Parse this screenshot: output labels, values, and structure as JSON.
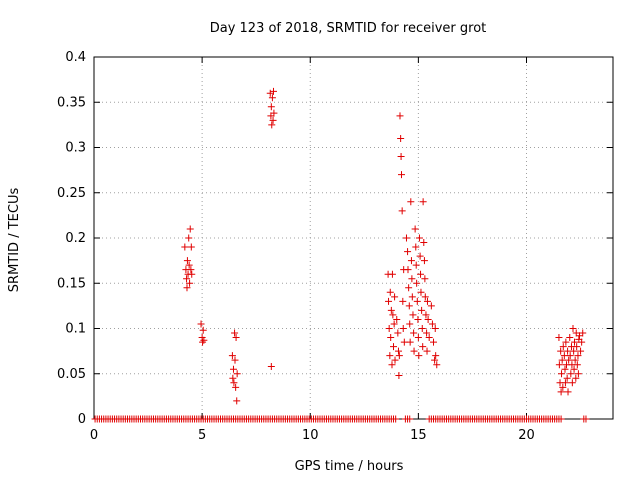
{
  "chart_data": {
    "type": "scatter",
    "title": "Day 123 of 2018, SRMTID for receiver grot",
    "xlabel": "GPS time / hours",
    "ylabel": "SRMTID / TECUs",
    "xlim": [
      0,
      24
    ],
    "ylim": [
      0,
      0.4
    ],
    "xticks": [
      0,
      5,
      10,
      15,
      20
    ],
    "xtick_labels": [
      "0",
      "5",
      "10",
      "15",
      "20"
    ],
    "yticks": [
      0,
      0.05,
      0.1,
      0.15,
      0.2,
      0.25,
      0.3,
      0.35,
      0.4
    ],
    "ytick_labels": [
      "0",
      "0.05",
      "0.1",
      "0.15",
      "0.2",
      "0.25",
      "0.3",
      "0.35",
      "0.4"
    ],
    "grid": true,
    "marker": "plus",
    "color": "#e00000",
    "series": [
      {
        "points": [
          [
            4.2,
            0.19
          ],
          [
            4.25,
            0.165
          ],
          [
            4.28,
            0.155
          ],
          [
            4.3,
            0.145
          ],
          [
            4.32,
            0.175
          ],
          [
            4.35,
            0.16
          ],
          [
            4.38,
            0.2
          ],
          [
            4.4,
            0.17
          ],
          [
            4.42,
            0.15
          ],
          [
            4.45,
            0.21
          ],
          [
            4.48,
            0.165
          ],
          [
            4.5,
            0.19
          ],
          [
            4.52,
            0.16
          ],
          [
            4.95,
            0.105
          ],
          [
            5.0,
            0.09
          ],
          [
            5.02,
            0.085
          ],
          [
            5.05,
            0.098
          ],
          [
            5.08,
            0.087
          ],
          [
            6.4,
            0.07
          ],
          [
            6.42,
            0.045
          ],
          [
            6.45,
            0.055
          ],
          [
            6.47,
            0.04
          ],
          [
            6.5,
            0.095
          ],
          [
            6.52,
            0.065
          ],
          [
            6.55,
            0.035
          ],
          [
            6.57,
            0.09
          ],
          [
            6.6,
            0.02
          ],
          [
            6.62,
            0.05
          ],
          [
            8.15,
            0.36
          ],
          [
            8.18,
            0.335
          ],
          [
            8.2,
            0.345
          ],
          [
            8.22,
            0.325
          ],
          [
            8.25,
            0.355
          ],
          [
            8.28,
            0.33
          ],
          [
            8.3,
            0.362
          ],
          [
            8.32,
            0.338
          ],
          [
            8.2,
            0.058
          ],
          [
            13.6,
            0.16
          ],
          [
            13.62,
            0.13
          ],
          [
            13.65,
            0.1
          ],
          [
            13.68,
            0.07
          ],
          [
            13.7,
            0.14
          ],
          [
            13.72,
            0.09
          ],
          [
            13.75,
            0.12
          ],
          [
            13.78,
            0.06
          ],
          [
            13.8,
            0.16
          ],
          [
            13.82,
            0.115
          ],
          [
            13.85,
            0.08
          ],
          [
            13.88,
            0.105
          ],
          [
            13.9,
            0.135
          ],
          [
            13.92,
            0.065
          ],
          [
            14.0,
            0.11
          ],
          [
            14.05,
            0.095
          ],
          [
            14.08,
            0.075
          ],
          [
            14.1,
            0.048
          ],
          [
            14.12,
            0.07
          ],
          [
            14.15,
            0.335
          ],
          [
            14.18,
            0.31
          ],
          [
            14.2,
            0.29
          ],
          [
            14.22,
            0.27
          ],
          [
            14.25,
            0.23
          ],
          [
            14.28,
            0.13
          ],
          [
            14.3,
            0.1
          ],
          [
            14.32,
            0.165
          ],
          [
            14.35,
            0.085
          ],
          [
            14.45,
            0.2
          ],
          [
            14.5,
            0.185
          ],
          [
            14.52,
            0.165
          ],
          [
            14.55,
            0.145
          ],
          [
            14.58,
            0.125
          ],
          [
            14.6,
            0.105
          ],
          [
            14.62,
            0.085
          ],
          [
            14.65,
            0.24
          ],
          [
            14.68,
            0.175
          ],
          [
            14.7,
            0.155
          ],
          [
            14.72,
            0.135
          ],
          [
            14.75,
            0.115
          ],
          [
            14.78,
            0.095
          ],
          [
            14.8,
            0.075
          ],
          [
            14.85,
            0.21
          ],
          [
            14.88,
            0.19
          ],
          [
            14.9,
            0.17
          ],
          [
            14.92,
            0.15
          ],
          [
            14.95,
            0.13
          ],
          [
            14.98,
            0.11
          ],
          [
            15.0,
            0.09
          ],
          [
            15.02,
            0.07
          ],
          [
            15.05,
            0.2
          ],
          [
            15.08,
            0.18
          ],
          [
            15.1,
            0.16
          ],
          [
            15.12,
            0.14
          ],
          [
            15.15,
            0.12
          ],
          [
            15.18,
            0.1
          ],
          [
            15.2,
            0.08
          ],
          [
            15.22,
            0.24
          ],
          [
            15.25,
            0.195
          ],
          [
            15.28,
            0.175
          ],
          [
            15.3,
            0.155
          ],
          [
            15.32,
            0.135
          ],
          [
            15.35,
            0.115
          ],
          [
            15.38,
            0.095
          ],
          [
            15.4,
            0.075
          ],
          [
            15.42,
            0.13
          ],
          [
            15.45,
            0.11
          ],
          [
            15.5,
            0.09
          ],
          [
            15.6,
            0.125
          ],
          [
            15.65,
            0.105
          ],
          [
            15.7,
            0.085
          ],
          [
            15.75,
            0.065
          ],
          [
            15.78,
            0.1
          ],
          [
            15.8,
            0.07
          ],
          [
            15.85,
            0.06
          ],
          [
            21.5,
            0.09
          ],
          [
            21.52,
            0.06
          ],
          [
            21.55,
            0.04
          ],
          [
            21.58,
            0.075
          ],
          [
            21.6,
            0.03
          ],
          [
            21.62,
            0.05
          ],
          [
            21.65,
            0.065
          ],
          [
            21.68,
            0.035
          ],
          [
            21.7,
            0.08
          ],
          [
            21.75,
            0.07
          ],
          [
            21.78,
            0.055
          ],
          [
            21.8,
            0.04
          ],
          [
            21.82,
            0.085
          ],
          [
            21.85,
            0.06
          ],
          [
            21.88,
            0.045
          ],
          [
            21.9,
            0.075
          ],
          [
            21.92,
            0.03
          ],
          [
            21.95,
            0.065
          ],
          [
            22.0,
            0.09
          ],
          [
            22.02,
            0.07
          ],
          [
            22.05,
            0.05
          ],
          [
            22.08,
            0.08
          ],
          [
            22.1,
            0.06
          ],
          [
            22.12,
            0.04
          ],
          [
            22.15,
            0.1
          ],
          [
            22.18,
            0.075
          ],
          [
            22.2,
            0.055
          ],
          [
            22.22,
            0.085
          ],
          [
            22.25,
            0.065
          ],
          [
            22.28,
            0.045
          ],
          [
            22.3,
            0.095
          ],
          [
            22.32,
            0.08
          ],
          [
            22.35,
            0.06
          ],
          [
            22.38,
            0.07
          ],
          [
            22.4,
            0.05
          ],
          [
            22.42,
            0.088
          ],
          [
            22.45,
            0.092
          ],
          [
            22.5,
            0.075
          ],
          [
            22.55,
            0.085
          ],
          [
            22.6,
            0.095
          ]
        ],
        "baseline_ranges": [
          [
            0.05,
            13.95
          ],
          [
            14.4,
            14.6
          ],
          [
            15.5,
            21.65
          ],
          [
            22.65,
            22.8
          ]
        ]
      }
    ]
  }
}
